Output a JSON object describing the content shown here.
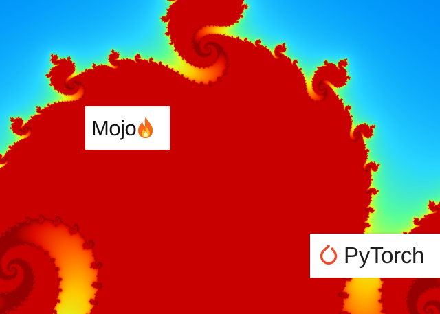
{
  "labels": {
    "mojo": {
      "text": "Mojo",
      "icon": "fire-emoji-icon"
    },
    "pytorch": {
      "text": "PyTorch",
      "icon": "pytorch-logo-icon",
      "icon_color": "#ee4c2c"
    }
  },
  "colors": {
    "background": "#0010b8",
    "interior": "#d00000"
  }
}
